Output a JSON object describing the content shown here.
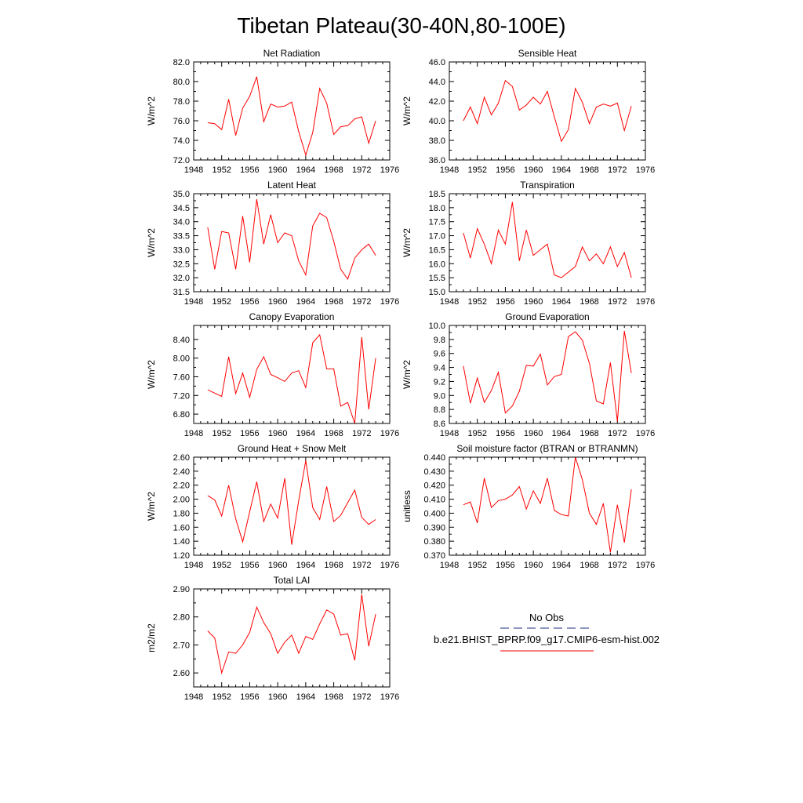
{
  "figure": {
    "title": "Tibetan Plateau(30-40N,80-100E)"
  },
  "colors": {
    "model": "#ff0000",
    "obs": "#1f2a80",
    "axes": "#000000"
  },
  "legend": {
    "obs_label": "No Obs",
    "model_label": "b.e21.BHIST_BPRP.f09_g17.CMIP6-esm-hist.002"
  },
  "chart_data": [
    {
      "type": "line",
      "title": "Net Radiation",
      "ylabel": "W/m^2",
      "xlabel": "",
      "xlim": [
        1948,
        1976
      ],
      "ylim": [
        72.0,
        82.0
      ],
      "xticks": [
        "1948",
        "1952",
        "1956",
        "1960",
        "1964",
        "1968",
        "1972",
        "1976"
      ],
      "yticks": [
        "72.0",
        "74.0",
        "76.0",
        "78.0",
        "80.0",
        "82.0"
      ],
      "x": [
        1950,
        1951,
        1952,
        1953,
        1954,
        1955,
        1956,
        1957,
        1958,
        1959,
        1960,
        1961,
        1962,
        1963,
        1964,
        1965,
        1966,
        1967,
        1968,
        1969,
        1970,
        1971,
        1972,
        1973,
        1974
      ],
      "series": [
        {
          "name": "b.e21.BHIST_BPRP.f09_g17.CMIP6-esm-hist.002",
          "values": [
            75.8,
            75.7,
            75.1,
            78.2,
            74.5,
            77.3,
            78.5,
            80.5,
            75.9,
            77.7,
            77.4,
            77.5,
            77.9,
            74.9,
            72.5,
            74.8,
            79.3,
            77.8,
            74.6,
            75.4,
            75.5,
            76.2,
            76.4,
            73.7,
            76.0
          ]
        }
      ]
    },
    {
      "type": "line",
      "title": "Sensible Heat",
      "ylabel": "W/m^2",
      "xlabel": "",
      "xlim": [
        1948,
        1976
      ],
      "ylim": [
        36.0,
        46.0
      ],
      "xticks": [
        "1948",
        "1952",
        "1956",
        "1960",
        "1964",
        "1968",
        "1972",
        "1976"
      ],
      "yticks": [
        "36.0",
        "38.0",
        "40.0",
        "42.0",
        "44.0",
        "46.0"
      ],
      "x": [
        1950,
        1951,
        1952,
        1953,
        1954,
        1955,
        1956,
        1957,
        1958,
        1959,
        1960,
        1961,
        1962,
        1963,
        1964,
        1965,
        1966,
        1967,
        1968,
        1969,
        1970,
        1971,
        1972,
        1973,
        1974
      ],
      "series": [
        {
          "name": "b.e21.BHIST_BPRP.f09_g17.CMIP6-esm-hist.002",
          "values": [
            40.0,
            41.4,
            39.7,
            42.4,
            40.6,
            41.8,
            44.1,
            43.5,
            41.1,
            41.6,
            42.4,
            41.7,
            43.0,
            40.4,
            37.9,
            39.1,
            43.3,
            41.9,
            39.7,
            41.4,
            41.7,
            41.5,
            41.8,
            39.0,
            41.5
          ]
        }
      ]
    },
    {
      "type": "line",
      "title": "Latent Heat",
      "ylabel": "W/m^2",
      "xlabel": "",
      "xlim": [
        1948,
        1976
      ],
      "ylim": [
        31.5,
        35.0
      ],
      "xticks": [
        "1948",
        "1952",
        "1956",
        "1960",
        "1964",
        "1968",
        "1972",
        "1976"
      ],
      "yticks": [
        "31.5",
        "32.0",
        "32.5",
        "33.0",
        "33.5",
        "34.0",
        "34.5",
        "35.0"
      ],
      "x": [
        1950,
        1951,
        1952,
        1953,
        1954,
        1955,
        1956,
        1957,
        1958,
        1959,
        1960,
        1961,
        1962,
        1963,
        1964,
        1965,
        1966,
        1967,
        1968,
        1969,
        1970,
        1971,
        1972,
        1973,
        1974
      ],
      "series": [
        {
          "name": "b.e21.BHIST_BPRP.f09_g17.CMIP6-esm-hist.002",
          "values": [
            33.8,
            32.3,
            33.65,
            33.6,
            32.3,
            34.2,
            32.55,
            34.8,
            33.2,
            34.25,
            33.25,
            33.6,
            33.5,
            32.6,
            32.1,
            33.85,
            34.3,
            34.15,
            33.3,
            32.3,
            31.95,
            32.7,
            33.0,
            33.2,
            32.8
          ]
        }
      ]
    },
    {
      "type": "line",
      "title": "Transpiration",
      "ylabel": "W/m^2",
      "xlabel": "",
      "xlim": [
        1948,
        1976
      ],
      "ylim": [
        15.0,
        18.5
      ],
      "xticks": [
        "1948",
        "1952",
        "1956",
        "1960",
        "1964",
        "1968",
        "1972",
        "1976"
      ],
      "yticks": [
        "15.0",
        "15.5",
        "16.0",
        "16.5",
        "17.0",
        "17.5",
        "18.0",
        "18.5"
      ],
      "x": [
        1950,
        1951,
        1952,
        1953,
        1954,
        1955,
        1956,
        1957,
        1958,
        1959,
        1960,
        1961,
        1962,
        1963,
        1964,
        1965,
        1966,
        1967,
        1968,
        1969,
        1970,
        1971,
        1972,
        1973,
        1974
      ],
      "series": [
        {
          "name": "b.e21.BHIST_BPRP.f09_g17.CMIP6-esm-hist.002",
          "values": [
            17.1,
            16.2,
            17.25,
            16.7,
            16.0,
            17.2,
            16.7,
            18.2,
            16.1,
            17.2,
            16.3,
            16.5,
            16.7,
            15.6,
            15.5,
            15.7,
            15.9,
            16.6,
            16.1,
            16.35,
            16.0,
            16.6,
            15.9,
            16.4,
            15.5
          ]
        }
      ]
    },
    {
      "type": "line",
      "title": "Canopy Evaporation",
      "ylabel": "W/m^2",
      "xlabel": "",
      "xlim": [
        1948,
        1976
      ],
      "ylim": [
        6.6,
        8.7
      ],
      "xticks": [
        "1948",
        "1952",
        "1956",
        "1960",
        "1964",
        "1968",
        "1972",
        "1976"
      ],
      "yticks": [
        "6.80",
        "7.20",
        "7.60",
        "8.00",
        "8.40"
      ],
      "ytick_values": [
        6.8,
        7.2,
        7.6,
        8.0,
        8.4
      ],
      "x": [
        1950,
        1951,
        1952,
        1953,
        1954,
        1955,
        1956,
        1957,
        1958,
        1959,
        1960,
        1961,
        1962,
        1963,
        1964,
        1965,
        1966,
        1967,
        1968,
        1969,
        1970,
        1971,
        1972,
        1973,
        1974
      ],
      "series": [
        {
          "name": "b.e21.BHIST_BPRP.f09_g17.CMIP6-esm-hist.002",
          "values": [
            7.32,
            7.25,
            7.18,
            8.03,
            7.24,
            7.68,
            7.16,
            7.76,
            8.03,
            7.65,
            7.58,
            7.5,
            7.68,
            7.73,
            7.37,
            8.33,
            8.5,
            7.77,
            7.77,
            6.97,
            7.05,
            6.6,
            8.45,
            6.9,
            8.0
          ]
        }
      ]
    },
    {
      "type": "line",
      "title": "Ground Evaporation",
      "ylabel": "W/m^2",
      "xlabel": "",
      "xlim": [
        1948,
        1976
      ],
      "ylim": [
        8.6,
        10.0
      ],
      "xticks": [
        "1948",
        "1952",
        "1956",
        "1960",
        "1964",
        "1968",
        "1972",
        "1976"
      ],
      "yticks": [
        "8.6",
        "8.8",
        "9.0",
        "9.2",
        "9.4",
        "9.6",
        "9.8",
        "10.0"
      ],
      "x": [
        1950,
        1951,
        1952,
        1953,
        1954,
        1955,
        1956,
        1957,
        1958,
        1959,
        1960,
        1961,
        1962,
        1963,
        1964,
        1965,
        1966,
        1967,
        1968,
        1969,
        1970,
        1971,
        1972,
        1973,
        1974
      ],
      "series": [
        {
          "name": "b.e21.BHIST_BPRP.f09_g17.CMIP6-esm-hist.002",
          "values": [
            9.42,
            8.89,
            9.25,
            8.9,
            9.07,
            9.33,
            8.75,
            8.85,
            9.06,
            9.43,
            9.42,
            9.59,
            9.15,
            9.27,
            9.3,
            9.84,
            9.91,
            9.79,
            9.46,
            8.92,
            8.88,
            9.47,
            8.63,
            9.92,
            9.32
          ]
        }
      ]
    },
    {
      "type": "line",
      "title": "Ground Heat + Snow Melt",
      "ylabel": "W/m^2",
      "xlabel": "",
      "xlim": [
        1948,
        1976
      ],
      "ylim": [
        1.2,
        2.6
      ],
      "xticks": [
        "1948",
        "1952",
        "1956",
        "1960",
        "1964",
        "1968",
        "1972",
        "1976"
      ],
      "yticks": [
        "1.20",
        "1.40",
        "1.60",
        "1.80",
        "2.00",
        "2.20",
        "2.40",
        "2.60"
      ],
      "ytick_values": [
        1.2,
        1.4,
        1.6,
        1.8,
        2.0,
        2.2,
        2.4,
        2.6
      ],
      "x": [
        1950,
        1951,
        1952,
        1953,
        1954,
        1955,
        1956,
        1957,
        1958,
        1959,
        1960,
        1961,
        1962,
        1963,
        1964,
        1965,
        1966,
        1967,
        1968,
        1969,
        1970,
        1971,
        1972,
        1973,
        1974
      ],
      "series": [
        {
          "name": "b.e21.BHIST_BPRP.f09_g17.CMIP6-esm-hist.002",
          "values": [
            2.05,
            1.99,
            1.76,
            2.2,
            1.72,
            1.39,
            1.82,
            2.25,
            1.68,
            1.93,
            1.73,
            2.3,
            1.35,
            1.98,
            2.55,
            1.88,
            1.71,
            2.18,
            1.68,
            1.77,
            1.95,
            2.13,
            1.74,
            1.64,
            1.71
          ]
        }
      ]
    },
    {
      "type": "line",
      "title": "Soil moisture factor (BTRAN or BTRANMN)",
      "ylabel": "unitless",
      "xlabel": "",
      "xlim": [
        1948,
        1976
      ],
      "ylim": [
        0.37,
        0.44
      ],
      "xticks": [
        "1948",
        "1952",
        "1956",
        "1960",
        "1964",
        "1968",
        "1972",
        "1976"
      ],
      "yticks": [
        "0.370",
        "0.380",
        "0.390",
        "0.400",
        "0.410",
        "0.420",
        "0.430",
        "0.440"
      ],
      "ytick_values": [
        0.37,
        0.38,
        0.39,
        0.4,
        0.41,
        0.42,
        0.43,
        0.44
      ],
      "x": [
        1950,
        1951,
        1952,
        1953,
        1954,
        1955,
        1956,
        1957,
        1958,
        1959,
        1960,
        1961,
        1962,
        1963,
        1964,
        1965,
        1966,
        1967,
        1968,
        1969,
        1970,
        1971,
        1972,
        1973,
        1974
      ],
      "series": [
        {
          "name": "b.e21.BHIST_BPRP.f09_g17.CMIP6-esm-hist.002",
          "values": [
            0.406,
            0.408,
            0.393,
            0.425,
            0.404,
            0.409,
            0.41,
            0.413,
            0.419,
            0.403,
            0.416,
            0.407,
            0.425,
            0.402,
            0.399,
            0.398,
            0.44,
            0.424,
            0.4,
            0.392,
            0.407,
            0.372,
            0.406,
            0.379,
            0.417
          ]
        }
      ]
    },
    {
      "type": "line",
      "title": "Total LAI",
      "ylabel": "m2/m2",
      "xlabel": "",
      "xlim": [
        1948,
        1976
      ],
      "ylim": [
        2.55,
        2.9
      ],
      "xticks": [
        "1948",
        "1952",
        "1956",
        "1960",
        "1964",
        "1968",
        "1972",
        "1976"
      ],
      "yticks": [
        "2.60",
        "2.70",
        "2.80",
        "2.90"
      ],
      "ytick_values": [
        2.6,
        2.7,
        2.8,
        2.9
      ],
      "x": [
        1950,
        1951,
        1952,
        1953,
        1954,
        1955,
        1956,
        1957,
        1958,
        1959,
        1960,
        1961,
        1962,
        1963,
        1964,
        1965,
        1966,
        1967,
        1968,
        1969,
        1970,
        1971,
        1972,
        1973,
        1974
      ],
      "series": [
        {
          "name": "b.e21.BHIST_BPRP.f09_g17.CMIP6-esm-hist.002",
          "values": [
            2.75,
            2.725,
            2.6,
            2.675,
            2.67,
            2.7,
            2.745,
            2.835,
            2.78,
            2.74,
            2.67,
            2.71,
            2.735,
            2.67,
            2.73,
            2.72,
            2.775,
            2.825,
            2.81,
            2.735,
            2.74,
            2.645,
            2.88,
            2.695,
            2.81
          ]
        }
      ]
    }
  ]
}
